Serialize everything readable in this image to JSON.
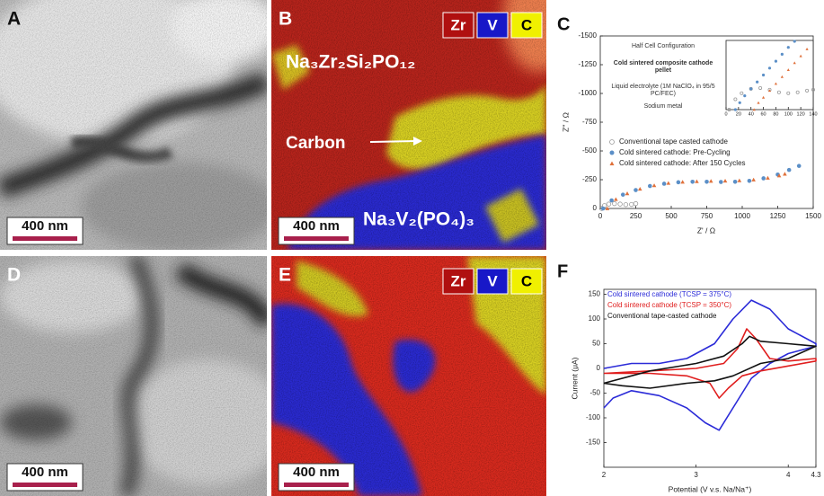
{
  "image_panels": [
    {
      "label": "A",
      "scale_bar": "400 nm"
    },
    {
      "label": "B",
      "scale_bar": "400 nm",
      "elements": [
        "Zr",
        "V",
        "C"
      ],
      "annotations": [
        "Na₃Zr₂Si₂PO₁₂",
        "Carbon",
        "Na₃V₂(PO₄)₃"
      ]
    },
    {
      "label": "D",
      "scale_bar": "400 nm"
    },
    {
      "label": "E",
      "scale_bar": "400 nm",
      "elements": [
        "Zr",
        "V",
        "C"
      ]
    }
  ],
  "chart_data": [
    {
      "type": "scatter",
      "panel_label": "C",
      "x_label": "Z' / Ω",
      "y_label": "Z'' / Ω",
      "xlim": [
        0,
        1500
      ],
      "ylim": [
        0,
        -1500
      ],
      "xticks": [
        0,
        250,
        500,
        750,
        1000,
        1250,
        1500
      ],
      "yticks": [
        0,
        -250,
        -500,
        -750,
        -1000,
        -1250,
        -1500
      ],
      "schematic": [
        "Half Cell Configuration",
        "Cold sintered composite cathode pellet",
        "Liquid electrolyte (1M NaClO₄ in 95/5 PC/FEC)",
        "Sodium metal"
      ],
      "series": [
        {
          "name": "Conventional tape casted cathode",
          "color": "#9a9a9a",
          "marker": "circle-open",
          "x": [
            10,
            30,
            60,
            100,
            140,
            180,
            220,
            250
          ],
          "values": [
            0,
            -25,
            -38,
            -42,
            -38,
            -33,
            -35,
            -42
          ]
        },
        {
          "name": "Cold sintered cathode: Pre-Cycling",
          "color": "#5b8fc7",
          "marker": "circle",
          "x": [
            20,
            80,
            160,
            250,
            350,
            450,
            550,
            650,
            750,
            850,
            950,
            1050,
            1150,
            1250,
            1330,
            1400
          ],
          "values": [
            0,
            -70,
            -120,
            -160,
            -195,
            -215,
            -228,
            -232,
            -232,
            -230,
            -232,
            -240,
            -262,
            -295,
            -335,
            -370
          ]
        },
        {
          "name": "Cold sintered cathode: After 150 Cycles",
          "color": "#e0703a",
          "marker": "triangle",
          "x": [
            50,
            110,
            190,
            280,
            380,
            480,
            580,
            680,
            780,
            880,
            980,
            1080,
            1180,
            1260,
            1300
          ],
          "values": [
            0,
            -80,
            -130,
            -170,
            -200,
            -220,
            -230,
            -235,
            -238,
            -240,
            -243,
            -250,
            -265,
            -285,
            -300
          ]
        }
      ]
    },
    {
      "type": "scatter",
      "xlim": [
        0,
        140
      ],
      "ylim": [
        0,
        -400
      ],
      "xticks": [
        0,
        20,
        40,
        60,
        80,
        100,
        120,
        140
      ],
      "series": [
        {
          "color": "#9a9a9a",
          "marker": "circle-open",
          "x": [
            5,
            15,
            25,
            40,
            55,
            70,
            85,
            100,
            115,
            130,
            140
          ],
          "values": [
            0,
            -60,
            -95,
            -120,
            -125,
            -115,
            -100,
            -95,
            -100,
            -110,
            -115
          ]
        },
        {
          "color": "#5b8fc7",
          "marker": "circle",
          "x": [
            15,
            22,
            30,
            40,
            50,
            60,
            70,
            80,
            90,
            100,
            110
          ],
          "values": [
            0,
            -40,
            -80,
            -120,
            -160,
            -200,
            -240,
            -280,
            -320,
            -360,
            -395
          ]
        },
        {
          "color": "#e0703a",
          "marker": "triangle",
          "x": [
            45,
            52,
            60,
            70,
            80,
            90,
            100,
            110,
            120,
            130
          ],
          "values": [
            0,
            -40,
            -70,
            -110,
            -150,
            -190,
            -230,
            -270,
            -310,
            -350
          ]
        }
      ]
    },
    {
      "type": "line",
      "panel_label": "F",
      "x_label": "Potential (V v.s. Na/Na⁺)",
      "y_label": "Current (μA)",
      "xlim": [
        2,
        4.3
      ],
      "ylim": [
        -200,
        160
      ],
      "xticks": [
        2,
        3,
        4,
        4.3
      ],
      "yticks": [
        -150,
        -100,
        -50,
        0,
        50,
        100,
        150
      ],
      "series": [
        {
          "name": "Cold sintered cathode (TCSP = 375°C)",
          "color": "#2b2bd8",
          "x": [
            2,
            2.3,
            2.6,
            2.9,
            3.2,
            3.4,
            3.6,
            3.8,
            4.0,
            4.3,
            4.3,
            4.0,
            3.8,
            3.6,
            3.4,
            3.25,
            3.1,
            2.9,
            2.6,
            2.3,
            2.1,
            2
          ],
          "values": [
            0,
            10,
            10,
            20,
            50,
            100,
            138,
            120,
            80,
            50,
            45,
            30,
            10,
            -20,
            -80,
            -125,
            -110,
            -80,
            -55,
            -45,
            -60,
            -80
          ]
        },
        {
          "name": "Cold sintered cathode (TCSP = 350°C)",
          "color": "#e01e1e",
          "x": [
            2,
            2.5,
            3,
            3.3,
            3.45,
            3.55,
            3.65,
            3.8,
            4.0,
            4.3,
            4.3,
            4.0,
            3.7,
            3.5,
            3.35,
            3.25,
            3.15,
            2.9,
            2.5,
            2
          ],
          "values": [
            -10,
            -5,
            0,
            10,
            40,
            80,
            60,
            20,
            15,
            20,
            15,
            5,
            -5,
            -15,
            -40,
            -60,
            -30,
            -15,
            -10,
            -10
          ]
        },
        {
          "name": "Conventional tape-casted cathode",
          "color": "#111111",
          "x": [
            2,
            2.5,
            3,
            3.3,
            3.5,
            3.58,
            3.7,
            4.0,
            4.3,
            4.3,
            4.0,
            3.7,
            3.4,
            3.2,
            2.9,
            2.5,
            2.2,
            2
          ],
          "values": [
            -30,
            -5,
            10,
            25,
            50,
            65,
            55,
            50,
            45,
            45,
            20,
            10,
            -15,
            -25,
            -30,
            -40,
            -35,
            -30
          ]
        }
      ]
    }
  ]
}
